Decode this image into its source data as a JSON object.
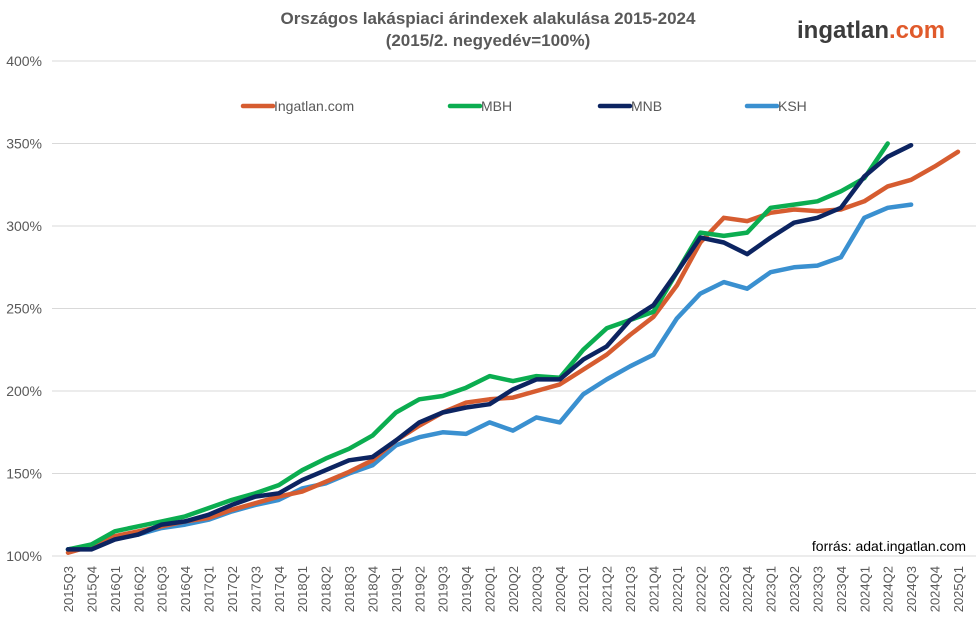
{
  "logo": {
    "text_main": "ingatlan",
    "text_suffix": ".com",
    "main_color": "#3c3c3c",
    "suffix_color": "#e05a2b"
  },
  "source": "forrás: adat.ingatlan.com",
  "chart_data": {
    "type": "line",
    "title": "Országos lakáspiaci árindexek alakulása 2015-2024",
    "subtitle": "(2015/2. negyedév=100%)",
    "xlabel": "",
    "ylabel": "",
    "ylim": [
      100,
      400
    ],
    "yticks": [
      "100%",
      "150%",
      "200%",
      "250%",
      "300%",
      "350%",
      "400%"
    ],
    "ytick_values": [
      100,
      150,
      200,
      250,
      300,
      350,
      400
    ],
    "grid": "horizontal",
    "legend_position": "top",
    "categories": [
      "2015Q3",
      "2015Q4",
      "2016Q1",
      "2016Q2",
      "2016Q3",
      "2016Q4",
      "2017Q1",
      "2017Q2",
      "2017Q3",
      "2017Q4",
      "2018Q1",
      "2018Q2",
      "2018Q3",
      "2018Q4",
      "2019Q1",
      "2019Q2",
      "2019Q3",
      "2019Q4",
      "2020Q1",
      "2020Q2",
      "2020Q3",
      "2020Q4",
      "2021Q1",
      "2021Q2",
      "2021Q3",
      "2021Q4",
      "2022Q1",
      "2022Q2",
      "2022Q3",
      "2022Q4",
      "2023Q1",
      "2023Q2",
      "2023Q3",
      "2023Q4",
      "2024Q1",
      "2024Q2",
      "2024Q3",
      "2024Q4",
      "2025Q1"
    ],
    "series": [
      {
        "name": "Ingatlan.com",
        "color": "#d65c30",
        "values": [
          102,
          106,
          112,
          115,
          118,
          121,
          123,
          128,
          132,
          136,
          139,
          145,
          151,
          158,
          170,
          179,
          187,
          193,
          195,
          196,
          200,
          204,
          213,
          222,
          234,
          245,
          264,
          290,
          305,
          303,
          308,
          310,
          309,
          310,
          315,
          324,
          328,
          336,
          345
        ]
      },
      {
        "name": "MBH",
        "color": "#0bad50",
        "values": [
          104,
          107,
          115,
          118,
          121,
          124,
          129,
          134,
          138,
          143,
          152,
          159,
          165,
          173,
          187,
          195,
          197,
          202,
          209,
          206,
          209,
          208,
          225,
          238,
          243,
          248,
          272,
          296,
          294,
          296,
          311,
          313,
          315,
          321,
          329,
          350,
          null,
          null,
          null
        ]
      },
      {
        "name": "MNB",
        "color": "#0c2461",
        "values": [
          104,
          104,
          110,
          113,
          119,
          121,
          125,
          131,
          136,
          138,
          146,
          152,
          158,
          160,
          170,
          181,
          187,
          190,
          192,
          201,
          207,
          207,
          219,
          227,
          243,
          252,
          272,
          293,
          290,
          283,
          293,
          302,
          305,
          311,
          330,
          342,
          349,
          null,
          null
        ]
      },
      {
        "name": "KSH",
        "color": "#3a90d0",
        "values": [
          104,
          106,
          111,
          113,
          117,
          119,
          122,
          127,
          131,
          134,
          141,
          144,
          150,
          155,
          167,
          172,
          175,
          174,
          181,
          176,
          184,
          181,
          198,
          207,
          215,
          222,
          244,
          259,
          266,
          262,
          272,
          275,
          276,
          281,
          305,
          311,
          313,
          null,
          null
        ]
      }
    ]
  }
}
